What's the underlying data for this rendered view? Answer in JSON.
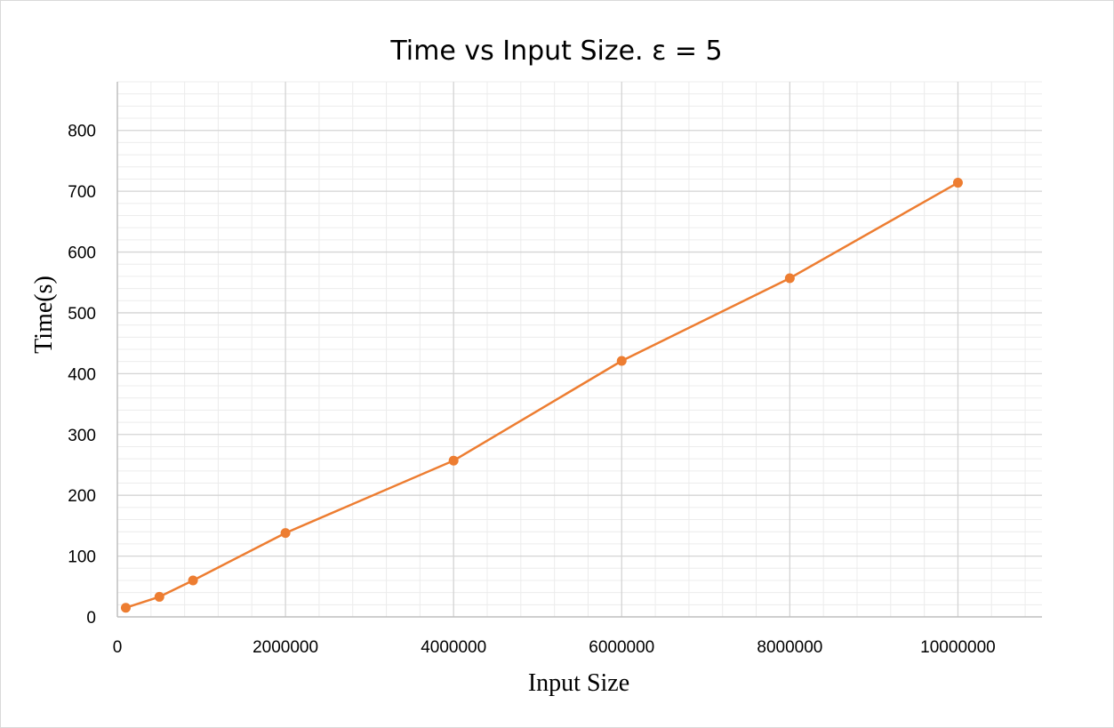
{
  "chart_data": {
    "type": "scatter",
    "title": "Time vs Input Size.  ε = 5",
    "xlabel": "Input Size",
    "ylabel": "Time(s)",
    "xlim": [
      0,
      11000000
    ],
    "ylim": [
      0,
      880
    ],
    "x_ticks": [
      0,
      2000000,
      4000000,
      6000000,
      8000000,
      10000000
    ],
    "x_tick_labels": [
      "0",
      "2000000",
      "4000000",
      "6000000",
      "8000000",
      "10000000"
    ],
    "y_ticks": [
      0,
      100,
      200,
      300,
      400,
      500,
      600,
      700,
      800
    ],
    "y_tick_labels": [
      "0",
      "100",
      "200",
      "300",
      "400",
      "500",
      "600",
      "700",
      "800"
    ],
    "x_minor_step": 400000,
    "y_minor_step": 20,
    "grid": true,
    "legend": "none",
    "series": [
      {
        "color": "#ED7D31",
        "x": [
          100000,
          500000,
          900000,
          2000000,
          4000000,
          6000000,
          8000000,
          10000000
        ],
        "y": [
          15,
          33,
          60,
          138,
          257,
          421,
          557,
          714
        ]
      }
    ]
  },
  "colors": {
    "major_grid": "#d4d4d4",
    "minor_grid": "#ececec",
    "axis_line": "#bfbfbf"
  }
}
